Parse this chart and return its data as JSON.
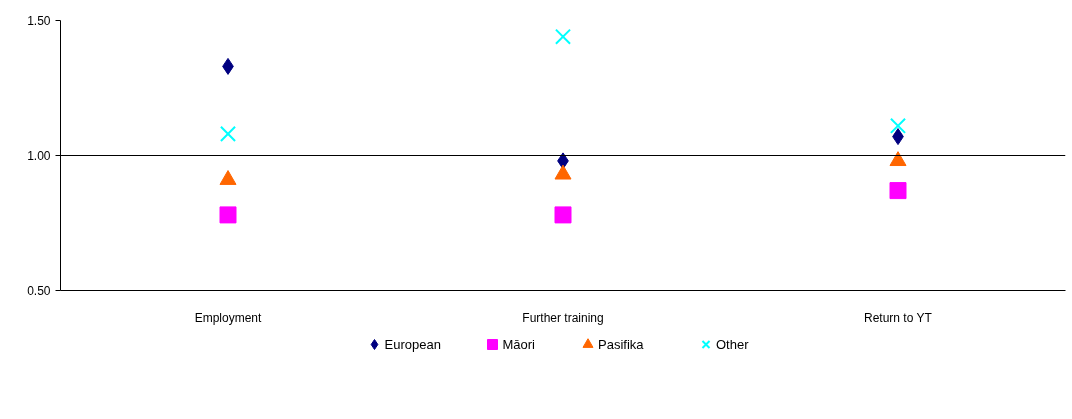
{
  "chart_data": {
    "type": "scatter",
    "categories": [
      "Employment",
      "Further training",
      "Return to YT"
    ],
    "ylim": [
      0.5,
      1.5
    ],
    "yticks": [
      {
        "value": 0.5,
        "label": "0.50"
      },
      {
        "value": 1.0,
        "label": "1.00"
      },
      {
        "value": 1.5,
        "label": "1.50"
      }
    ],
    "grid": false,
    "legend": "bottom",
    "ref_lines": [
      {
        "axis": "y",
        "value": 1.0,
        "color": "#000000"
      }
    ],
    "series": [
      {
        "name": "European",
        "color": "#000080",
        "marker": "diamond",
        "values": [
          1.33,
          0.98,
          1.07
        ]
      },
      {
        "name": "Māori",
        "color": "#ff00ff",
        "marker": "square",
        "values": [
          0.78,
          0.78,
          0.87
        ]
      },
      {
        "name": "Pasifika",
        "color": "#ff6600",
        "marker": "triangle",
        "values": [
          0.91,
          0.93,
          0.98
        ]
      },
      {
        "name": "Other",
        "color": "#00ffff",
        "marker": "cross",
        "values": [
          1.08,
          1.44,
          1.11
        ]
      }
    ]
  }
}
